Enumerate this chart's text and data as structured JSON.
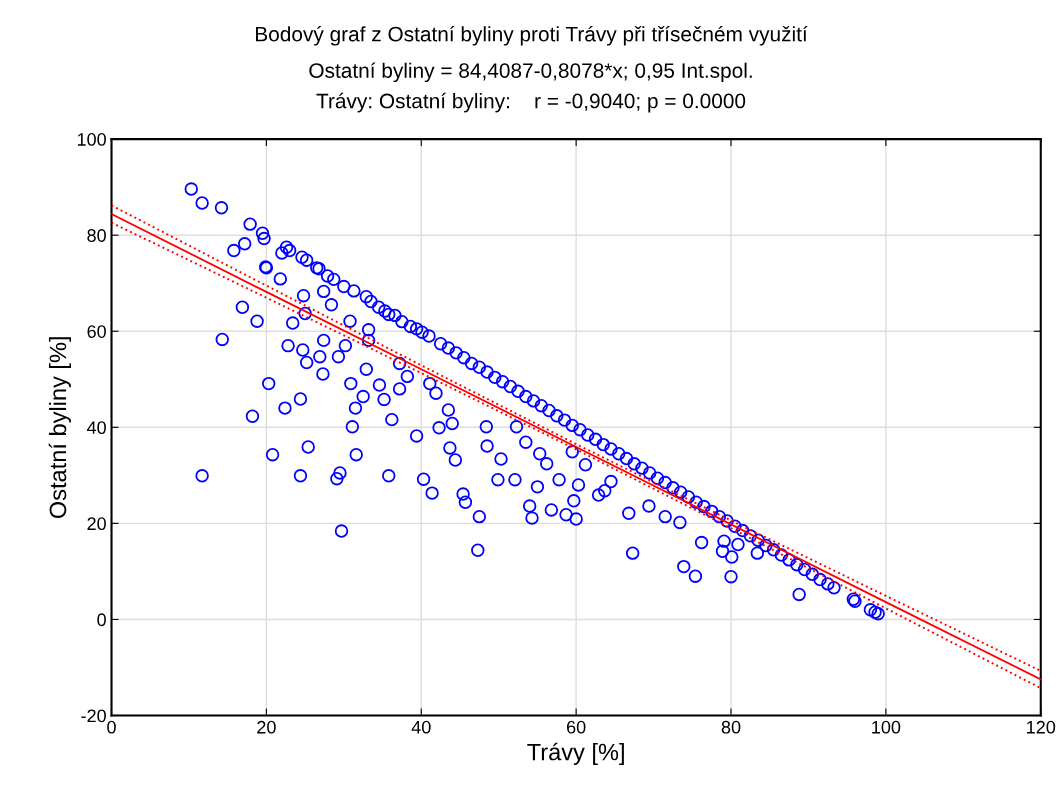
{
  "chart_data": {
    "type": "scatter",
    "title": "Bodový graf z Ostatní byliny proti Trávy při třísečném využití",
    "subtitle": "Ostatní byliny = 84,4087-0,8078*x; 0,95 Int.spol.\nTrávy: Ostatní byliny:    r = -0,9040; p = 0.0000",
    "xlabel": "Trávy [%]",
    "ylabel": "Ostatní byliny [%]",
    "xlim": [
      0,
      120
    ],
    "ylim": [
      -20,
      100
    ],
    "xticks": [
      0,
      20,
      40,
      60,
      80,
      100,
      120
    ],
    "yticks": [
      -20,
      0,
      20,
      40,
      60,
      80,
      100
    ],
    "grid": true,
    "marker": "circle",
    "series": [
      {
        "color": "#0000ff",
        "x": [
          10.3,
          11.7,
          14.2,
          17.9,
          19.5,
          19.7,
          15.8,
          17.2,
          20.0,
          22.6,
          22.0,
          23.0,
          24.6,
          25.2,
          26.5,
          26.8,
          27.9,
          28.7,
          30.0,
          31.3,
          32.9,
          33.5,
          34.5,
          35.3,
          35.8,
          36.6,
          37.5,
          38.6,
          39.4,
          40.1,
          41.0,
          42.5,
          43.5,
          44.5,
          45.5,
          46.5,
          47.5,
          48.5,
          49.5,
          50.5,
          51.5,
          52.5,
          53.5,
          54.5,
          55.5,
          56.5,
          57.5,
          58.5,
          59.5,
          60.5,
          61.5,
          62.5,
          63.5,
          64.5,
          65.5,
          66.5,
          67.5,
          68.5,
          69.5,
          70.5,
          71.5,
          72.5,
          73.5,
          74.5,
          75.5,
          76.5,
          77.5,
          78.5,
          79.5,
          80.5,
          81.5,
          82.5,
          83.5,
          84.5,
          85.5,
          86.5,
          87.5,
          88.5,
          89.5,
          90.5,
          91.5,
          92.5,
          93.3,
          95.8,
          96.0,
          98.0,
          98.6,
          99.0,
          14.3,
          11.7,
          16.9,
          18.8,
          20.3,
          18.2,
          20.8,
          22.4,
          24.4,
          24.4,
          25.4,
          29.7,
          29.1,
          29.5,
          31.6,
          31.1,
          31.5,
          32.5,
          30.9,
          35.8,
          36.2,
          37.2,
          40.3,
          41.4,
          42.3,
          39.4,
          24.7,
          25.2,
          26.9,
          27.3,
          29.3,
          30.2,
          22.8,
          23.4,
          27.4,
          32.9,
          34.6,
          35.2,
          38.2,
          21.8,
          19.9,
          24.8,
          27.4,
          28.4,
          30.8,
          25.0,
          33.2,
          44.0,
          43.7,
          47.3,
          45.4,
          45.7,
          47.5,
          49.9,
          54.0,
          54.3,
          56.8,
          55.0,
          57.8,
          60.0,
          58.7,
          59.7,
          62.9,
          67.3,
          66.8,
          69.4,
          71.5,
          73.9,
          75.4,
          76.2,
          78.9,
          80.1,
          80.0,
          73.4,
          44.4,
          48.5,
          50.3,
          52.1,
          56.2,
          53.5,
          60.3,
          61.2,
          63.7,
          64.5,
          48.4,
          52.3,
          43.5,
          59.5,
          55.3,
          88.8,
          83.4,
          80.9,
          79.1,
          33.2,
          37.2,
          41.1,
          41.9
        ],
        "values": [
          89.6,
          86.7,
          85.7,
          82.3,
          80.4,
          79.3,
          76.8,
          78.2,
          73.2,
          77.5,
          76.3,
          76.8,
          75.4,
          74.8,
          73.2,
          73.0,
          71.5,
          70.8,
          69.3,
          68.4,
          67.2,
          66.2,
          65.0,
          64.2,
          63.5,
          63.3,
          62.0,
          61.0,
          60.5,
          59.8,
          59.0,
          57.4,
          56.5,
          55.5,
          54.5,
          53.3,
          52.5,
          51.5,
          50.4,
          49.5,
          48.5,
          47.5,
          46.4,
          45.5,
          44.5,
          43.5,
          42.4,
          41.5,
          40.4,
          39.5,
          38.4,
          37.5,
          36.4,
          35.5,
          34.5,
          33.5,
          32.4,
          31.5,
          30.5,
          29.4,
          28.5,
          27.4,
          26.5,
          25.5,
          24.4,
          23.5,
          22.5,
          21.4,
          20.5,
          19.4,
          18.5,
          17.4,
          16.5,
          15.4,
          14.5,
          13.4,
          12.4,
          11.4,
          10.4,
          9.4,
          8.3,
          7.4,
          6.6,
          4.2,
          3.8,
          2.0,
          1.5,
          1.2,
          58.3,
          29.9,
          65.0,
          62.1,
          49.1,
          42.3,
          34.3,
          44.0,
          45.9,
          29.9,
          35.9,
          18.4,
          29.3,
          30.5,
          34.3,
          40.1,
          44.0,
          46.4,
          49.1,
          29.9,
          41.6,
          48.0,
          29.2,
          26.3,
          39.9,
          38.2,
          56.1,
          53.5,
          54.7,
          51.1,
          54.7,
          57.0,
          57.0,
          61.7,
          58.1,
          52.1,
          48.8,
          45.8,
          50.6,
          70.9,
          73.4,
          67.4,
          68.3,
          65.5,
          62.1,
          63.7,
          58.1,
          40.8,
          35.7,
          14.4,
          26.1,
          24.4,
          21.4,
          29.1,
          23.6,
          21.1,
          22.8,
          27.6,
          29.1,
          20.9,
          21.8,
          24.7,
          25.9,
          13.8,
          22.1,
          23.6,
          21.4,
          11.0,
          9.0,
          16.0,
          14.2,
          13.0,
          8.9,
          20.2,
          33.2,
          36.1,
          33.4,
          29.1,
          32.4,
          36.9,
          28.0,
          32.2,
          26.8,
          28.7,
          40.1,
          40.1,
          43.6,
          34.9,
          34.5,
          5.2,
          13.8,
          15.6,
          16.3,
          60.3,
          53.3,
          49.1,
          47.1
        ]
      },
      {
        "type": "line",
        "color": "#ff0000",
        "marker": "none",
        "line_style": "solid",
        "x": [
          0,
          20,
          40,
          60,
          80,
          100,
          120
        ],
        "values": [
          84.4,
          68.2,
          52.1,
          35.9,
          19.8,
          3.6,
          -12.5
        ]
      },
      {
        "type": "line",
        "color": "#ff0000",
        "marker": "none",
        "line_style": "dotted",
        "x": [
          0,
          20,
          40,
          60,
          80,
          100,
          120
        ],
        "values": [
          82.6,
          67.0,
          51.3,
          35.4,
          19.0,
          2.3,
          -14.3
        ]
      },
      {
        "type": "line",
        "color": "#ff0000",
        "marker": "none",
        "line_style": "dotted",
        "x": [
          0,
          20,
          40,
          60,
          80,
          100,
          120
        ],
        "values": [
          86.2,
          69.5,
          52.9,
          36.5,
          20.6,
          4.9,
          -10.7
        ]
      }
    ]
  }
}
